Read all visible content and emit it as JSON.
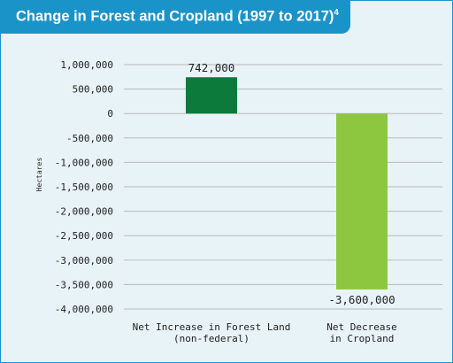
{
  "header": {
    "title": "Change in Forest and Cropland (1997 to 2017)",
    "footnote": "4"
  },
  "colors": {
    "header": "#1a94c8",
    "background": "#e8f3f7",
    "forest_bar": "#0b7a3a",
    "cropland_bar": "#8dc63f",
    "grid": "#b9b9b9"
  },
  "chart_data": {
    "type": "bar",
    "title": "Change in Forest and Cropland (1997 to 2017)",
    "xlabel": "",
    "ylabel": "Hectares",
    "ylim": [
      -4000000,
      1000000
    ],
    "yticks": [
      1000000,
      500000,
      0,
      -500000,
      -1000000,
      -1500000,
      -2000000,
      -2500000,
      -3000000,
      -3500000,
      -4000000
    ],
    "ytick_labels": [
      "1,000,000",
      "500,000",
      "0",
      "-500,000",
      "-1,000,000",
      "-1,500,000",
      "-2,000,000",
      "-2,500,000",
      "-3,000,000",
      "-3,500,000",
      "-4,000,000"
    ],
    "categories": [
      [
        "Net Increase in Forest Land",
        "(non-federal)"
      ],
      [
        "Net Decrease",
        "in Cropland"
      ]
    ],
    "values": [
      742000,
      -3600000
    ],
    "value_labels": [
      "742,000",
      "-3,600,000"
    ],
    "bar_colors": [
      "#0b7a3a",
      "#8dc63f"
    ],
    "grid": true,
    "legend": "none"
  }
}
